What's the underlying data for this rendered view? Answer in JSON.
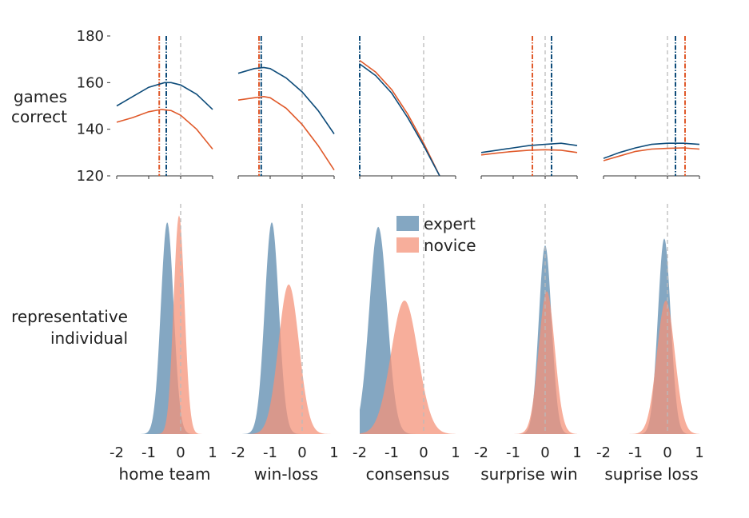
{
  "chart_data": {
    "type": "line",
    "colors": {
      "expert_line": "#0e4c7a",
      "novice_line": "#e05a2b",
      "expert_fill": "#5b89ad",
      "novice_fill": "#f4937a",
      "zero_line": "#bbbbbb"
    },
    "legend": {
      "placement": "center",
      "entries": [
        "expert",
        "novice"
      ]
    },
    "row_labels": {
      "top": [
        "games",
        "correct"
      ],
      "bottom": [
        "representative",
        "individual"
      ]
    },
    "top_y_ticks": [
      "120",
      "140",
      "160",
      "180"
    ],
    "top_ylim": [
      120,
      180
    ],
    "xlim": [
      -2,
      1
    ],
    "x_ticks": [
      "-2",
      "-1",
      "0",
      "1"
    ],
    "panels": [
      {
        "label": "home team",
        "top_xlim": [
          -2,
          1
        ],
        "expert_curve": [
          [
            -2,
            150
          ],
          [
            -1.5,
            154
          ],
          [
            -1,
            158
          ],
          [
            -0.5,
            160
          ],
          [
            -0.3,
            160
          ],
          [
            0,
            159
          ],
          [
            0.5,
            155
          ],
          [
            1,
            148.5
          ]
        ],
        "novice_curve": [
          [
            -2,
            143
          ],
          [
            -1.5,
            145
          ],
          [
            -1,
            147.5
          ],
          [
            -0.6,
            148.5
          ],
          [
            -0.3,
            148
          ],
          [
            0,
            146
          ],
          [
            0.5,
            140
          ],
          [
            1,
            131.5
          ]
        ],
        "expert_opt": -0.45,
        "novice_opt": -0.67,
        "expert_dist": {
          "mean": -0.42,
          "sd": 0.2,
          "peak": 0.92
        },
        "novice_dist": {
          "mean": -0.05,
          "sd": 0.17,
          "peak": 0.95
        }
      },
      {
        "label": "win-loss",
        "top_xlim": [
          -2,
          1
        ],
        "expert_curve": [
          [
            -2,
            164
          ],
          [
            -1.5,
            166
          ],
          [
            -1.2,
            166.5
          ],
          [
            -1,
            166
          ],
          [
            -0.5,
            162
          ],
          [
            0,
            156
          ],
          [
            0.5,
            148
          ],
          [
            1,
            138
          ]
        ],
        "novice_curve": [
          [
            -2,
            152.5
          ],
          [
            -1.5,
            153.5
          ],
          [
            -1.2,
            154
          ],
          [
            -1,
            153.5
          ],
          [
            -0.5,
            149
          ],
          [
            0,
            142
          ],
          [
            0.5,
            133
          ],
          [
            1,
            122.5
          ]
        ],
        "expert_opt": -1.28,
        "novice_opt": -1.35,
        "expert_dist": {
          "mean": -0.95,
          "sd": 0.22,
          "peak": 0.92
        },
        "novice_dist": {
          "mean": -0.42,
          "sd": 0.32,
          "peak": 0.65
        }
      },
      {
        "label": "consensus",
        "top_xlim": [
          -2,
          1
        ],
        "expert_curve": [
          [
            -2,
            168
          ],
          [
            -1.5,
            163
          ],
          [
            -1,
            155.5
          ],
          [
            -0.5,
            145
          ],
          [
            0,
            133
          ],
          [
            0.5,
            120
          ]
        ],
        "novice_curve": [
          [
            -2,
            169.5
          ],
          [
            -1.5,
            164.5
          ],
          [
            -1,
            157
          ],
          [
            -0.5,
            146.5
          ],
          [
            0,
            134
          ],
          [
            0.5,
            120
          ]
        ],
        "expert_opt": -2.0,
        "novice_opt": -2.0,
        "expert_dist": {
          "mean": -1.42,
          "sd": 0.28,
          "peak": 0.9
        },
        "novice_dist": {
          "mean": -0.6,
          "sd": 0.42,
          "peak": 0.58
        }
      },
      {
        "label": "surprise win",
        "top_xlim": [
          -2,
          1
        ],
        "expert_curve": [
          [
            -2,
            130
          ],
          [
            -1.5,
            131
          ],
          [
            -1,
            132
          ],
          [
            -0.5,
            133
          ],
          [
            0,
            133.5
          ],
          [
            0.5,
            134
          ],
          [
            1,
            133
          ]
        ],
        "novice_curve": [
          [
            -2,
            129
          ],
          [
            -1.5,
            129.8
          ],
          [
            -1,
            130.5
          ],
          [
            -0.5,
            131
          ],
          [
            0,
            131.2
          ],
          [
            0.5,
            131
          ],
          [
            1,
            130
          ]
        ],
        "expert_opt": 0.2,
        "novice_opt": -0.4,
        "expert_dist": {
          "mean": 0.0,
          "sd": 0.2,
          "peak": 0.82
        },
        "novice_dist": {
          "mean": 0.05,
          "sd": 0.25,
          "peak": 0.62
        }
      },
      {
        "label": "suprise loss",
        "top_xlim": [
          -2,
          1
        ],
        "expert_curve": [
          [
            -2,
            127.5
          ],
          [
            -1.5,
            130
          ],
          [
            -1,
            132
          ],
          [
            -0.5,
            133.5
          ],
          [
            0,
            134
          ],
          [
            0.5,
            134
          ],
          [
            1,
            133.5
          ]
        ],
        "novice_curve": [
          [
            -2,
            126.5
          ],
          [
            -1.5,
            128.5
          ],
          [
            -1,
            130.5
          ],
          [
            -0.5,
            131.5
          ],
          [
            0,
            131.8
          ],
          [
            0.5,
            132
          ],
          [
            1,
            131.5
          ]
        ],
        "expert_opt": 0.25,
        "novice_opt": 0.55,
        "expert_dist": {
          "mean": -0.1,
          "sd": 0.2,
          "peak": 0.85
        },
        "novice_dist": {
          "mean": -0.05,
          "sd": 0.28,
          "peak": 0.58
        }
      }
    ]
  }
}
